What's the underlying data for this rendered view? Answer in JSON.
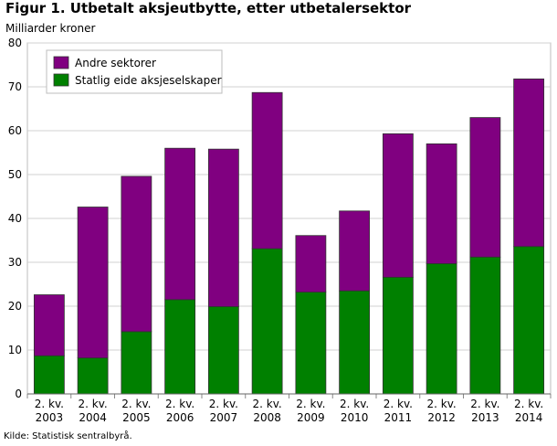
{
  "title": "Figur 1. Utbetalt aksjeutbytte, etter utbetalersektor",
  "source": "Kilde: Statistisk sentralbyrå.",
  "chart_data": {
    "type": "bar",
    "stacked": true,
    "ylabel": "Milliarder kroner",
    "ylim": [
      0,
      80
    ],
    "yticks": [
      0,
      10,
      20,
      30,
      40,
      50,
      60,
      70,
      80
    ],
    "grid": true,
    "legend_position": "top-left",
    "categories": [
      [
        "2. kv.",
        "2003"
      ],
      [
        "2. kv.",
        "2004"
      ],
      [
        "2. kv.",
        "2005"
      ],
      [
        "2. kv.",
        "2006"
      ],
      [
        "2. kv.",
        "2007"
      ],
      [
        "2. kv.",
        "2008"
      ],
      [
        "2. kv.",
        "2009"
      ],
      [
        "2. kv.",
        "2010"
      ],
      [
        "2. kv.",
        "2011"
      ],
      [
        "2. kv.",
        "2012"
      ],
      [
        "2. kv.",
        "2013"
      ],
      [
        "2. kv.",
        "2014"
      ]
    ],
    "series": [
      {
        "name": "Statlig eide aksjeselskaper",
        "color": "#008000",
        "values": [
          8.7,
          8.2,
          14.2,
          21.5,
          19.9,
          33.1,
          23.2,
          23.5,
          26.6,
          29.7,
          31.2,
          33.6
        ]
      },
      {
        "name": "Andre sektorer",
        "color": "#800080",
        "values": [
          13.9,
          34.4,
          35.4,
          34.5,
          35.9,
          35.6,
          12.9,
          18.2,
          32.7,
          27.3,
          31.8,
          38.2
        ]
      }
    ],
    "legend_order": [
      "Andre sektorer",
      "Statlig eide aksjeselskaper"
    ]
  }
}
